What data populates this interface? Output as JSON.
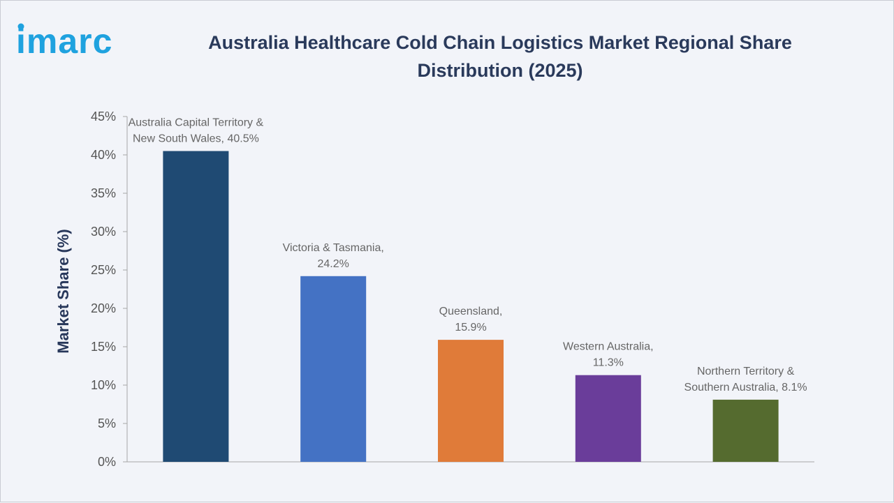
{
  "header": {
    "logo_text": "imarc",
    "title_line1": "Australia Healthcare Cold Chain Logistics Market Regional Share",
    "title_line2": "Distribution (2025)"
  },
  "colors": {
    "title": "#2a3a5b",
    "logo": "#1fa2df",
    "axis_label": "#27375a",
    "tick": "#555555",
    "data_label": "#666666"
  },
  "chart_data": {
    "type": "bar",
    "title": "Australia Healthcare Cold Chain Logistics Market Regional Share Distribution (2025)",
    "ylabel": "Market Share (%)",
    "xlabel": "",
    "ylim": [
      0,
      45
    ],
    "yticks": [
      0,
      5,
      10,
      15,
      20,
      25,
      30,
      35,
      40,
      45
    ],
    "ytick_labels": [
      "0%",
      "5%",
      "10%",
      "15%",
      "20%",
      "25%",
      "30%",
      "35%",
      "40%",
      "45%"
    ],
    "grid": false,
    "legend": "none",
    "categories": [
      "Australia Capital Territory & New South Wales",
      "Victoria & Tasmania",
      "Queensland",
      "Western Australia",
      "Northern Territory & Southern Australia"
    ],
    "values": [
      40.5,
      24.2,
      15.9,
      11.3,
      8.1
    ],
    "colors": [
      "#1f4a73",
      "#4472c4",
      "#e07b39",
      "#6a3d9a",
      "#556b2f"
    ],
    "data_labels": [
      [
        "Australia Capital Territory &",
        "New South Wales, 40.5%"
      ],
      [
        "Victoria & Tasmania,",
        "24.2%"
      ],
      [
        "Queensland,",
        "15.9%"
      ],
      [
        "Western Australia,",
        "11.3%"
      ],
      [
        "Northern Territory &",
        "Southern Australia, 8.1%"
      ]
    ]
  }
}
